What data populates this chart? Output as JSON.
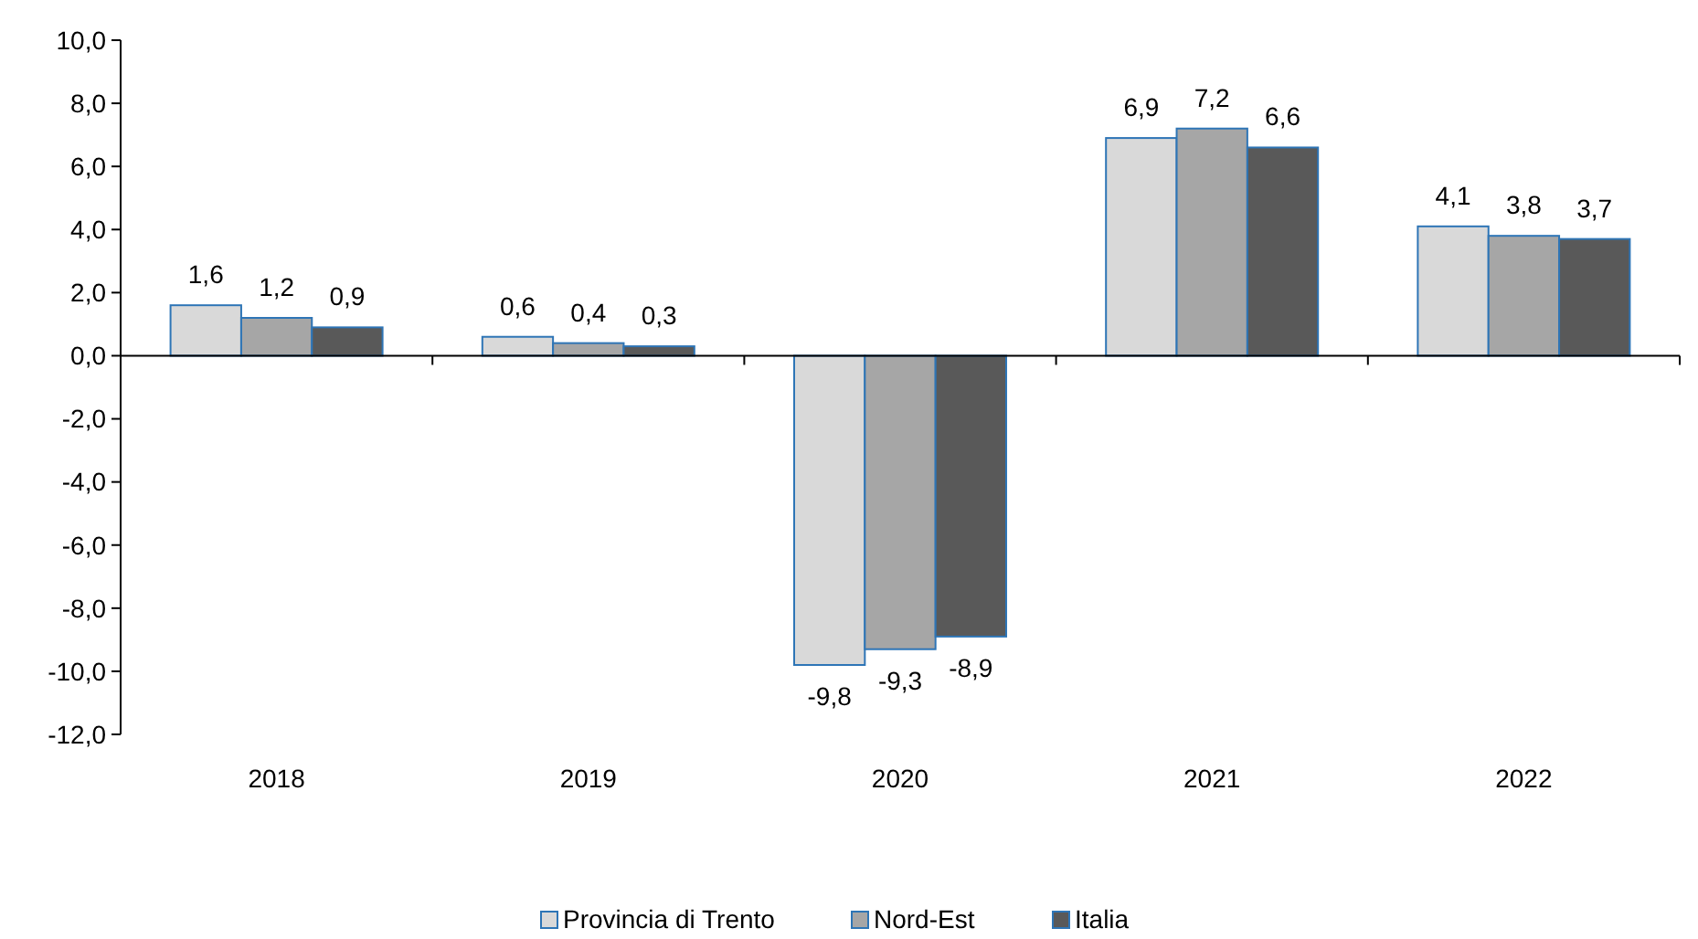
{
  "chart_data": {
    "type": "bar",
    "categories": [
      "2018",
      "2019",
      "2020",
      "2021",
      "2022"
    ],
    "series": [
      {
        "name": "Provincia di Trento",
        "color": "#d9d9d9",
        "values": [
          1.6,
          0.6,
          -9.8,
          6.9,
          4.1
        ],
        "value_labels": [
          "1,6",
          "0,6",
          "-9,8",
          "6,9",
          "4,1"
        ]
      },
      {
        "name": "Nord-Est",
        "color": "#a6a6a6",
        "values": [
          1.2,
          0.4,
          -9.3,
          7.2,
          3.8
        ],
        "value_labels": [
          "1,2",
          "0,4",
          "-9,3",
          "7,2",
          "3,8"
        ]
      },
      {
        "name": "Italia",
        "color": "#595959",
        "values": [
          0.9,
          0.3,
          -8.9,
          6.6,
          3.7
        ],
        "value_labels": [
          "0,9",
          "0,3",
          "-8,9",
          "6,6",
          "3,7"
        ]
      }
    ],
    "ylim": [
      -12,
      10
    ],
    "yticks": [
      {
        "value": 10,
        "label": "10,0"
      },
      {
        "value": 8,
        "label": "8,0"
      },
      {
        "value": 6,
        "label": "6,0"
      },
      {
        "value": 4,
        "label": "4,0"
      },
      {
        "value": 2,
        "label": "2,0"
      },
      {
        "value": 0,
        "label": "0,0"
      },
      {
        "value": -2,
        "label": "-2,0"
      },
      {
        "value": -4,
        "label": "-4,0"
      },
      {
        "value": -6,
        "label": "-6,0"
      },
      {
        "value": -8,
        "label": "-8,0"
      },
      {
        "value": -10,
        "label": "-10,0"
      },
      {
        "value": -12,
        "label": "-12,0"
      }
    ],
    "legend": "bottom"
  }
}
